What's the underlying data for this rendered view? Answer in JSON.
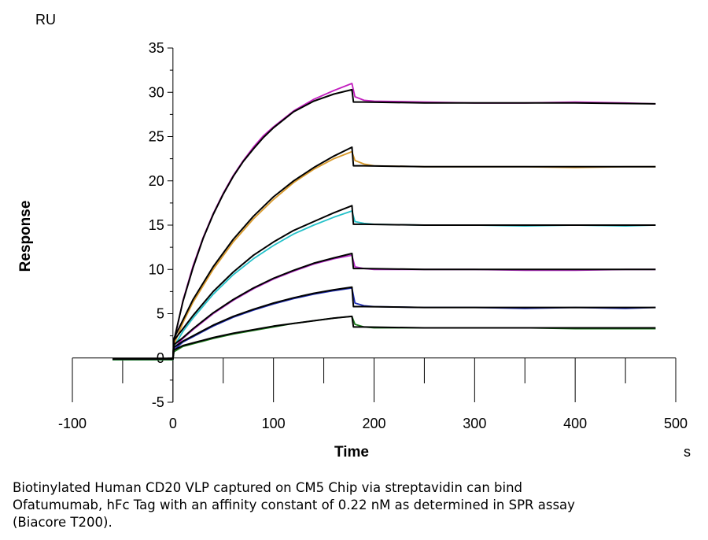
{
  "chart_data": {
    "type": "line",
    "xlabel": "Time",
    "ylabel": "Response",
    "x_unit": "s",
    "y_unit": "RU",
    "xlim": [
      -100,
      500
    ],
    "ylim": [
      -5,
      35
    ],
    "x_ticks": [
      "-100",
      "0",
      "100",
      "200",
      "300",
      "400",
      "500"
    ],
    "y_ticks": [
      "35",
      "30",
      "25",
      "20",
      "15",
      "10",
      "5",
      "0",
      "-5"
    ],
    "grid": false,
    "legend": "none",
    "fit_color": "#000000",
    "association_end": 180,
    "series": [
      {
        "color": "#c21fbf",
        "points": [
          [
            -60,
            -0.2
          ],
          [
            0,
            -0.2
          ],
          [
            1,
            1.8
          ],
          [
            10,
            6.5
          ],
          [
            20,
            10.4
          ],
          [
            30,
            13.6
          ],
          [
            40,
            16.3
          ],
          [
            50,
            18.6
          ],
          [
            60,
            20.6
          ],
          [
            70,
            22.3
          ],
          [
            80,
            23.8
          ],
          [
            90,
            25.1
          ],
          [
            100,
            26.1
          ],
          [
            120,
            27.9
          ],
          [
            140,
            29.2
          ],
          [
            160,
            30.2
          ],
          [
            178,
            31.0
          ],
          [
            181,
            29.5
          ],
          [
            190,
            29.1
          ],
          [
            200,
            29.0
          ],
          [
            250,
            28.9
          ],
          [
            300,
            28.8
          ],
          [
            350,
            28.8
          ],
          [
            400,
            28.9
          ],
          [
            450,
            28.8
          ],
          [
            480,
            28.7
          ]
        ]
      },
      {
        "color": "#d99a2b",
        "points": [
          [
            -60,
            -0.2
          ],
          [
            0,
            -0.2
          ],
          [
            1,
            1.5
          ],
          [
            10,
            4.0
          ],
          [
            20,
            6.3
          ],
          [
            40,
            10.0
          ],
          [
            60,
            13.1
          ],
          [
            80,
            15.7
          ],
          [
            100,
            17.9
          ],
          [
            120,
            19.8
          ],
          [
            140,
            21.3
          ],
          [
            160,
            22.5
          ],
          [
            178,
            23.3
          ],
          [
            181,
            22.3
          ],
          [
            190,
            21.9
          ],
          [
            200,
            21.7
          ],
          [
            250,
            21.6
          ],
          [
            300,
            21.6
          ],
          [
            350,
            21.6
          ],
          [
            400,
            21.5
          ],
          [
            450,
            21.6
          ],
          [
            480,
            21.6
          ]
        ]
      },
      {
        "color": "#25c1c9",
        "points": [
          [
            -60,
            -0.2
          ],
          [
            0,
            -0.2
          ],
          [
            1,
            1.3
          ],
          [
            10,
            3.0
          ],
          [
            20,
            4.5
          ],
          [
            40,
            7.2
          ],
          [
            60,
            9.4
          ],
          [
            80,
            11.2
          ],
          [
            100,
            12.7
          ],
          [
            120,
            14.0
          ],
          [
            140,
            15.0
          ],
          [
            160,
            15.9
          ],
          [
            178,
            16.6
          ],
          [
            181,
            15.4
          ],
          [
            190,
            15.2
          ],
          [
            200,
            15.1
          ],
          [
            250,
            15.0
          ],
          [
            300,
            15.0
          ],
          [
            350,
            14.9
          ],
          [
            400,
            15.0
          ],
          [
            450,
            14.9
          ],
          [
            480,
            15.0
          ]
        ]
      },
      {
        "color": "#b82ec9",
        "points": [
          [
            -60,
            -0.2
          ],
          [
            0,
            -0.2
          ],
          [
            1,
            1.1
          ],
          [
            10,
            2.2
          ],
          [
            20,
            3.2
          ],
          [
            40,
            5.0
          ],
          [
            60,
            6.5
          ],
          [
            80,
            7.8
          ],
          [
            100,
            8.9
          ],
          [
            120,
            9.8
          ],
          [
            140,
            10.6
          ],
          [
            160,
            11.2
          ],
          [
            178,
            11.6
          ],
          [
            181,
            10.3
          ],
          [
            190,
            10.1
          ],
          [
            200,
            10.0
          ],
          [
            250,
            10.0
          ],
          [
            300,
            10.0
          ],
          [
            350,
            9.9
          ],
          [
            400,
            9.9
          ],
          [
            450,
            10.0
          ],
          [
            480,
            10.0
          ]
        ]
      },
      {
        "color": "#1f2fb4",
        "points": [
          [
            -60,
            -0.2
          ],
          [
            0,
            -0.2
          ],
          [
            1,
            0.9
          ],
          [
            10,
            1.8
          ],
          [
            20,
            2.4
          ],
          [
            40,
            3.6
          ],
          [
            60,
            4.6
          ],
          [
            80,
            5.4
          ],
          [
            100,
            6.1
          ],
          [
            120,
            6.7
          ],
          [
            140,
            7.2
          ],
          [
            160,
            7.6
          ],
          [
            178,
            7.9
          ],
          [
            181,
            6.2
          ],
          [
            190,
            5.9
          ],
          [
            200,
            5.8
          ],
          [
            250,
            5.7
          ],
          [
            300,
            5.7
          ],
          [
            350,
            5.6
          ],
          [
            400,
            5.7
          ],
          [
            450,
            5.6
          ],
          [
            480,
            5.7
          ]
        ]
      },
      {
        "color": "#1d7a1d",
        "points": [
          [
            -60,
            -0.2
          ],
          [
            0,
            -0.2
          ],
          [
            1,
            0.7
          ],
          [
            10,
            1.3
          ],
          [
            20,
            1.6
          ],
          [
            40,
            2.2
          ],
          [
            60,
            2.7
          ],
          [
            80,
            3.1
          ],
          [
            100,
            3.5
          ],
          [
            120,
            3.9
          ],
          [
            140,
            4.2
          ],
          [
            160,
            4.5
          ],
          [
            178,
            4.7
          ],
          [
            181,
            3.8
          ],
          [
            190,
            3.5
          ],
          [
            200,
            3.4
          ],
          [
            250,
            3.4
          ],
          [
            300,
            3.4
          ],
          [
            350,
            3.4
          ],
          [
            400,
            3.3
          ],
          [
            450,
            3.3
          ],
          [
            480,
            3.3
          ]
        ]
      }
    ],
    "fits": [
      {
        "points": [
          [
            -60,
            -0.1
          ],
          [
            0,
            -0.1
          ],
          [
            1,
            2.0
          ],
          [
            10,
            6.4
          ],
          [
            20,
            10.2
          ],
          [
            30,
            13.5
          ],
          [
            40,
            16.2
          ],
          [
            50,
            18.5
          ],
          [
            60,
            20.5
          ],
          [
            70,
            22.2
          ],
          [
            80,
            23.6
          ],
          [
            90,
            24.9
          ],
          [
            100,
            26.0
          ],
          [
            120,
            27.8
          ],
          [
            140,
            29.0
          ],
          [
            160,
            29.8
          ],
          [
            178,
            30.3
          ],
          [
            179.5,
            28.9
          ],
          [
            190,
            28.9
          ],
          [
            250,
            28.8
          ],
          [
            300,
            28.8
          ],
          [
            350,
            28.8
          ],
          [
            400,
            28.8
          ],
          [
            480,
            28.7
          ]
        ]
      },
      {
        "points": [
          [
            -60,
            -0.1
          ],
          [
            0,
            -0.1
          ],
          [
            1,
            2.2
          ],
          [
            10,
            4.3
          ],
          [
            20,
            6.6
          ],
          [
            40,
            10.3
          ],
          [
            60,
            13.4
          ],
          [
            80,
            16.0
          ],
          [
            100,
            18.2
          ],
          [
            120,
            20.0
          ],
          [
            140,
            21.5
          ],
          [
            160,
            22.8
          ],
          [
            178,
            23.8
          ],
          [
            179.5,
            21.7
          ],
          [
            190,
            21.7
          ],
          [
            250,
            21.6
          ],
          [
            300,
            21.6
          ],
          [
            350,
            21.6
          ],
          [
            400,
            21.6
          ],
          [
            480,
            21.6
          ]
        ]
      },
      {
        "points": [
          [
            -60,
            -0.1
          ],
          [
            0,
            -0.1
          ],
          [
            1,
            2.0
          ],
          [
            10,
            3.3
          ],
          [
            20,
            4.8
          ],
          [
            40,
            7.5
          ],
          [
            60,
            9.7
          ],
          [
            80,
            11.6
          ],
          [
            100,
            13.1
          ],
          [
            120,
            14.4
          ],
          [
            140,
            15.4
          ],
          [
            160,
            16.4
          ],
          [
            178,
            17.2
          ],
          [
            179.5,
            15.1
          ],
          [
            190,
            15.1
          ],
          [
            250,
            15.0
          ],
          [
            300,
            15.0
          ],
          [
            350,
            15.0
          ],
          [
            400,
            15.0
          ],
          [
            480,
            15.0
          ]
        ]
      },
      {
        "points": [
          [
            -60,
            -0.1
          ],
          [
            0,
            -0.1
          ],
          [
            1,
            1.5
          ],
          [
            10,
            2.3
          ],
          [
            20,
            3.3
          ],
          [
            40,
            5.1
          ],
          [
            60,
            6.6
          ],
          [
            80,
            7.9
          ],
          [
            100,
            9.0
          ],
          [
            120,
            9.9
          ],
          [
            140,
            10.7
          ],
          [
            160,
            11.3
          ],
          [
            178,
            11.8
          ],
          [
            179.5,
            10.1
          ],
          [
            190,
            10.1
          ],
          [
            250,
            10.0
          ],
          [
            300,
            10.0
          ],
          [
            350,
            10.0
          ],
          [
            400,
            10.0
          ],
          [
            480,
            10.0
          ]
        ]
      },
      {
        "points": [
          [
            -60,
            -0.1
          ],
          [
            0,
            -0.1
          ],
          [
            1,
            1.2
          ],
          [
            10,
            1.9
          ],
          [
            20,
            2.5
          ],
          [
            40,
            3.7
          ],
          [
            60,
            4.7
          ],
          [
            80,
            5.5
          ],
          [
            100,
            6.2
          ],
          [
            120,
            6.8
          ],
          [
            140,
            7.3
          ],
          [
            160,
            7.7
          ],
          [
            178,
            8.0
          ],
          [
            179.5,
            5.8
          ],
          [
            190,
            5.8
          ],
          [
            250,
            5.7
          ],
          [
            300,
            5.7
          ],
          [
            350,
            5.7
          ],
          [
            400,
            5.7
          ],
          [
            480,
            5.7
          ]
        ]
      },
      {
        "points": [
          [
            -60,
            -0.1
          ],
          [
            0,
            -0.1
          ],
          [
            1,
            0.9
          ],
          [
            10,
            1.4
          ],
          [
            20,
            1.7
          ],
          [
            40,
            2.3
          ],
          [
            60,
            2.8
          ],
          [
            80,
            3.2
          ],
          [
            100,
            3.6
          ],
          [
            120,
            3.9
          ],
          [
            140,
            4.2
          ],
          [
            160,
            4.5
          ],
          [
            178,
            4.7
          ],
          [
            179.5,
            3.5
          ],
          [
            190,
            3.5
          ],
          [
            250,
            3.4
          ],
          [
            300,
            3.4
          ],
          [
            350,
            3.4
          ],
          [
            400,
            3.4
          ],
          [
            480,
            3.4
          ]
        ]
      }
    ]
  },
  "caption": "Biotinylated Human CD20 VLP captured on CM5 Chip via streptavidin can bind Ofatumumab, hFc Tag with an affinity constant of 0.22 nM as determined in SPR assay (Biacore T200)."
}
